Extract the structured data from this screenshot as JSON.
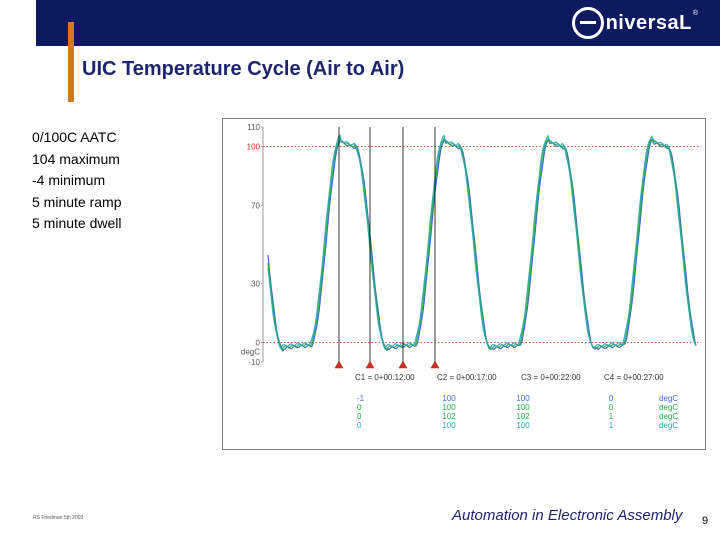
{
  "header": {
    "logo_text": "niversaL",
    "logo_reg": "®",
    "title": "UIC Temperature Cycle (Air to Air)"
  },
  "bullets": [
    "0/100C AATC",
    "104 maximum",
    "-4 minimum",
    "5 minute ramp",
    "5 minute dwell"
  ],
  "chart": {
    "y_ticks": [
      {
        "label": "110",
        "value": 110
      },
      {
        "label": "100",
        "value": 100,
        "color": "#cc2222"
      },
      {
        "label": "70",
        "value": 70
      },
      {
        "label": "30",
        "value": 30
      },
      {
        "label": "0",
        "value": 0
      },
      {
        "label": "-10",
        "value": -10
      }
    ],
    "unit_label": "degC",
    "cursor_labels": [
      "C1 = 0+00:12:00",
      "C2 = 0+00:17:00",
      "C3 = 0+00:22:00",
      "C4 = 0+00:27:00"
    ],
    "unit_header": "degC",
    "readout_rows": [
      {
        "color": "#4466cc",
        "values": [
          "-1",
          "100",
          "100",
          "0"
        ],
        "unit": "degC"
      },
      {
        "color": "#22aa44",
        "values": [
          "0",
          "100",
          "100",
          "0"
        ],
        "unit": "degC"
      },
      {
        "color": "#22aa44",
        "values": [
          "0",
          "102",
          "102",
          "1"
        ],
        "unit": "degC"
      },
      {
        "color": "#22aaaa",
        "values": [
          "0",
          "100",
          "100",
          "1"
        ],
        "unit": "degC"
      }
    ],
    "series_colors": [
      "#3355cc",
      "#22aa44",
      "#22aaaa"
    ]
  },
  "footer": {
    "note": "RS Friedman 5th 2003",
    "tagline": "Automation in Electronic Assembly",
    "page_number": "9"
  }
}
